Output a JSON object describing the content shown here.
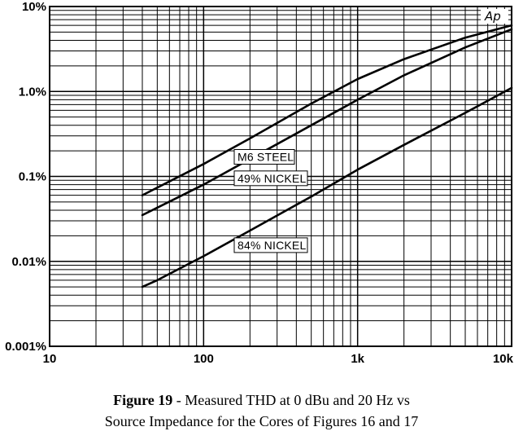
{
  "chart_data": {
    "type": "line",
    "title": "",
    "xlabel": "",
    "ylabel": "",
    "x_scale": "log",
    "y_scale": "log",
    "xlim": [
      10,
      10000
    ],
    "ylim": [
      0.001,
      10
    ],
    "x_tick_labels": [
      {
        "value": 10,
        "label": "10"
      },
      {
        "value": 100,
        "label": "100"
      },
      {
        "value": 1000,
        "label": "1k"
      },
      {
        "value": 10000,
        "label": "10k"
      }
    ],
    "y_tick_labels": [
      {
        "value": 10,
        "label": "10%"
      },
      {
        "value": 1,
        "label": "1.0%"
      },
      {
        "value": 0.1,
        "label": "0.1%"
      },
      {
        "value": 0.01,
        "label": "0.01%"
      },
      {
        "value": 0.001,
        "label": "0.001%"
      }
    ],
    "grid": true,
    "logo_text": "Ap",
    "series": [
      {
        "name": "M6 STEEL",
        "x": [
          40,
          100,
          200,
          500,
          1000,
          2000,
          5000,
          10000
        ],
        "y": [
          0.06,
          0.14,
          0.28,
          0.72,
          1.4,
          2.4,
          4.3,
          6.0
        ]
      },
      {
        "name": "49% NICKEL",
        "x": [
          40,
          100,
          200,
          500,
          1000,
          2000,
          5000,
          10000
        ],
        "y": [
          0.035,
          0.08,
          0.16,
          0.4,
          0.8,
          1.55,
          3.3,
          5.4
        ]
      },
      {
        "name": "84% NICKEL",
        "x": [
          40,
          50,
          100,
          200,
          500,
          1000,
          2000,
          5000,
          10000
        ],
        "y": [
          0.005,
          0.006,
          0.0115,
          0.023,
          0.058,
          0.12,
          0.235,
          0.56,
          1.1
        ]
      }
    ]
  },
  "caption": {
    "figure_number": "Figure 19",
    "line1_rest": " - Measured THD at 0 dBu and 20 Hz vs",
    "line2": "Source Impedance for the Cores of Figures 16 and 17"
  }
}
